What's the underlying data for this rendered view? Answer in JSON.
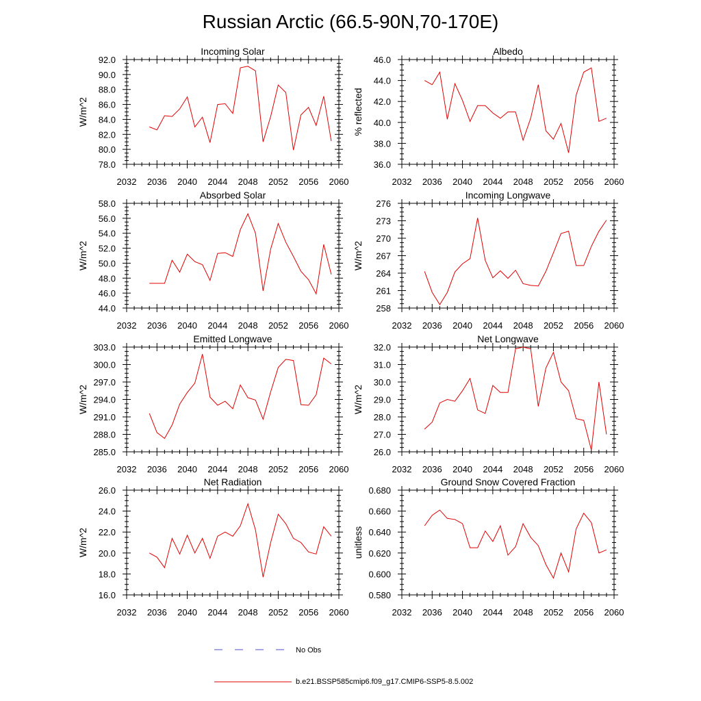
{
  "figure": {
    "title": "Russian Arctic (66.5-90N,70-170E)"
  },
  "legend": {
    "obs_label": "No Obs",
    "model_label": "b.e21.BSSP585cmip6.f09_g17.CMIP6-SSP5-8.5.002",
    "obs_color": "#4c4ccc",
    "model_color": "#e00000"
  },
  "chart_data": [
    {
      "type": "line",
      "title": "Incoming Solar",
      "ylabel": "W/m^2",
      "xlim": [
        2032,
        2060
      ],
      "ylim": [
        78,
        92
      ],
      "x_ticks": [
        2032,
        2036,
        2040,
        2044,
        2048,
        2052,
        2056,
        2060
      ],
      "x_tick_labels": [
        "2032",
        "2036",
        "2040",
        "2044",
        "2048",
        "2052",
        "2056",
        "2060"
      ],
      "y_ticks": [
        78,
        80,
        82,
        84,
        86,
        88,
        90,
        92
      ],
      "y_tick_labels": [
        "78.0",
        "80.0",
        "82.0",
        "84.0",
        "86.0",
        "88.0",
        "90.0",
        "92.0"
      ],
      "x": [
        2035,
        2036,
        2037,
        2038,
        2039,
        2040,
        2041,
        2042,
        2043,
        2044,
        2045,
        2046,
        2047,
        2048,
        2049,
        2050,
        2051,
        2052,
        2053,
        2054,
        2055,
        2056,
        2057,
        2058,
        2059
      ],
      "values": [
        83.0,
        82.6,
        84.5,
        84.4,
        85.4,
        87.0,
        83.0,
        84.3,
        80.9,
        86.0,
        86.1,
        84.8,
        90.9,
        91.1,
        90.5,
        81.0,
        84.4,
        88.6,
        87.6,
        79.9,
        84.6,
        85.6,
        83.2,
        87.1,
        81.1
      ]
    },
    {
      "type": "line",
      "title": "Albedo",
      "ylabel": "% reflected",
      "xlim": [
        2032,
        2060
      ],
      "ylim": [
        36,
        46
      ],
      "x_ticks": [
        2032,
        2036,
        2040,
        2044,
        2048,
        2052,
        2056,
        2060
      ],
      "x_tick_labels": [
        "2032",
        "2036",
        "2040",
        "2044",
        "2048",
        "2052",
        "2056",
        "2060"
      ],
      "y_ticks": [
        36,
        38,
        40,
        42,
        44,
        46
      ],
      "y_tick_labels": [
        "36.0",
        "38.0",
        "40.0",
        "42.0",
        "44.0",
        "46.0"
      ],
      "x": [
        2035,
        2036,
        2037,
        2038,
        2039,
        2040,
        2041,
        2042,
        2043,
        2044,
        2045,
        2046,
        2047,
        2048,
        2049,
        2050,
        2051,
        2052,
        2053,
        2054,
        2055,
        2056,
        2057,
        2058,
        2059
      ],
      "values": [
        44.0,
        43.6,
        44.8,
        40.3,
        43.7,
        42.1,
        40.1,
        41.6,
        41.6,
        40.9,
        40.4,
        41.0,
        41.0,
        38.3,
        40.4,
        43.6,
        39.2,
        38.4,
        39.9,
        37.1,
        42.6,
        44.8,
        45.2,
        40.1,
        40.4
      ]
    },
    {
      "type": "line",
      "title": "Absorbed Solar",
      "ylabel": "W/m^2",
      "xlim": [
        2032,
        2060
      ],
      "ylim": [
        44,
        58
      ],
      "x_ticks": [
        2032,
        2036,
        2040,
        2044,
        2048,
        2052,
        2056,
        2060
      ],
      "x_tick_labels": [
        "2032",
        "2036",
        "2040",
        "2044",
        "2048",
        "2052",
        "2056",
        "2060"
      ],
      "y_ticks": [
        44,
        46,
        48,
        50,
        52,
        54,
        56,
        58
      ],
      "y_tick_labels": [
        "44.0",
        "46.0",
        "48.0",
        "50.0",
        "52.0",
        "54.0",
        "56.0",
        "58.0"
      ],
      "x": [
        2035,
        2036,
        2037,
        2038,
        2039,
        2040,
        2041,
        2042,
        2043,
        2044,
        2045,
        2046,
        2047,
        2048,
        2049,
        2050,
        2051,
        2052,
        2053,
        2054,
        2055,
        2056,
        2057,
        2058,
        2059
      ],
      "values": [
        47.3,
        47.3,
        47.3,
        50.4,
        48.8,
        51.2,
        50.2,
        49.8,
        47.7,
        51.3,
        51.4,
        50.9,
        54.5,
        56.6,
        54.0,
        46.3,
        51.9,
        55.3,
        52.8,
        50.9,
        48.9,
        47.8,
        45.9,
        52.5,
        48.5
      ]
    },
    {
      "type": "line",
      "title": "Incoming Longwave",
      "ylabel": "W/m^2",
      "xlim": [
        2032,
        2060
      ],
      "ylim": [
        258,
        276
      ],
      "x_ticks": [
        2032,
        2036,
        2040,
        2044,
        2048,
        2052,
        2056,
        2060
      ],
      "x_tick_labels": [
        "2032",
        "2036",
        "2040",
        "2044",
        "2048",
        "2052",
        "2056",
        "2060"
      ],
      "y_ticks": [
        258,
        261,
        264,
        267,
        270,
        273,
        276
      ],
      "y_tick_labels": [
        "258",
        "261",
        "264",
        "267",
        "270",
        "273",
        "276"
      ],
      "x": [
        2035,
        2036,
        2037,
        2038,
        2039,
        2040,
        2041,
        2042,
        2043,
        2044,
        2045,
        2046,
        2047,
        2048,
        2049,
        2050,
        2051,
        2052,
        2053,
        2054,
        2055,
        2056,
        2057,
        2058,
        2059
      ],
      "values": [
        264.3,
        260.7,
        258.6,
        260.7,
        264.2,
        265.6,
        266.5,
        273.5,
        266.2,
        263.2,
        264.4,
        263.1,
        264.5,
        262.2,
        261.9,
        261.8,
        264.3,
        267.5,
        270.8,
        271.2,
        265.3,
        265.3,
        268.6,
        271.2,
        273.1
      ]
    },
    {
      "type": "line",
      "title": "Emitted Longwave",
      "ylabel": "W/m^2",
      "xlim": [
        2032,
        2060
      ],
      "ylim": [
        285,
        303
      ],
      "x_ticks": [
        2032,
        2036,
        2040,
        2044,
        2048,
        2052,
        2056,
        2060
      ],
      "x_tick_labels": [
        "2032",
        "2036",
        "2040",
        "2044",
        "2048",
        "2052",
        "2056",
        "2060"
      ],
      "y_ticks": [
        285,
        288,
        291,
        294,
        297,
        300,
        303
      ],
      "y_tick_labels": [
        "285.0",
        "288.0",
        "291.0",
        "294.0",
        "297.0",
        "300.0",
        "303.0"
      ],
      "x": [
        2035,
        2036,
        2037,
        2038,
        2039,
        2040,
        2041,
        2042,
        2043,
        2044,
        2045,
        2046,
        2047,
        2048,
        2049,
        2050,
        2051,
        2052,
        2053,
        2054,
        2055,
        2056,
        2057,
        2058,
        2059
      ],
      "values": [
        291.6,
        288.3,
        287.3,
        289.6,
        293.2,
        295.2,
        296.8,
        301.8,
        294.4,
        293.0,
        293.7,
        292.4,
        296.5,
        294.3,
        293.9,
        290.6,
        295.3,
        299.5,
        300.9,
        300.7,
        293.1,
        293.0,
        294.8,
        301.1,
        300.1
      ]
    },
    {
      "type": "line",
      "title": "Net Longwave",
      "ylabel": "W/m^2",
      "xlim": [
        2032,
        2060
      ],
      "ylim": [
        26,
        32
      ],
      "x_ticks": [
        2032,
        2036,
        2040,
        2044,
        2048,
        2052,
        2056,
        2060
      ],
      "x_tick_labels": [
        "2032",
        "2036",
        "2040",
        "2044",
        "2048",
        "2052",
        "2056",
        "2060"
      ],
      "y_ticks": [
        26,
        27,
        28,
        29,
        30,
        31,
        32
      ],
      "y_tick_labels": [
        "26.0",
        "27.0",
        "28.0",
        "29.0",
        "30.0",
        "31.0",
        "32.0"
      ],
      "x": [
        2035,
        2036,
        2037,
        2038,
        2039,
        2040,
        2041,
        2042,
        2043,
        2044,
        2045,
        2046,
        2047,
        2048,
        2049,
        2050,
        2051,
        2052,
        2053,
        2054,
        2055,
        2056,
        2057,
        2058,
        2059
      ],
      "values": [
        27.3,
        27.7,
        28.8,
        29.0,
        28.9,
        29.5,
        30.2,
        28.4,
        28.2,
        29.8,
        29.4,
        29.4,
        31.9,
        32.0,
        31.9,
        28.6,
        30.8,
        31.7,
        30.0,
        29.5,
        27.9,
        27.8,
        26.1,
        30.0,
        27.0
      ]
    },
    {
      "type": "line",
      "title": "Net Radiation",
      "ylabel": "W/m^2",
      "xlim": [
        2032,
        2060
      ],
      "ylim": [
        16,
        26
      ],
      "x_ticks": [
        2032,
        2036,
        2040,
        2044,
        2048,
        2052,
        2056,
        2060
      ],
      "x_tick_labels": [
        "2032",
        "2036",
        "2040",
        "2044",
        "2048",
        "2052",
        "2056",
        "2060"
      ],
      "y_ticks": [
        16,
        18,
        20,
        22,
        24,
        26
      ],
      "y_tick_labels": [
        "16.0",
        "18.0",
        "20.0",
        "22.0",
        "24.0",
        "26.0"
      ],
      "x": [
        2035,
        2036,
        2037,
        2038,
        2039,
        2040,
        2041,
        2042,
        2043,
        2044,
        2045,
        2046,
        2047,
        2048,
        2049,
        2050,
        2051,
        2052,
        2053,
        2054,
        2055,
        2056,
        2057,
        2058,
        2059
      ],
      "values": [
        20.0,
        19.6,
        18.6,
        21.4,
        19.9,
        21.7,
        20.0,
        21.4,
        19.5,
        21.6,
        22.0,
        21.6,
        22.6,
        24.7,
        22.2,
        17.7,
        21.0,
        23.7,
        22.8,
        21.4,
        21.0,
        20.1,
        19.9,
        22.5,
        21.6
      ]
    },
    {
      "type": "line",
      "title": "Ground Snow Covered Fraction",
      "ylabel": "unitless",
      "xlim": [
        2032,
        2060
      ],
      "ylim": [
        0.58,
        0.68
      ],
      "x_ticks": [
        2032,
        2036,
        2040,
        2044,
        2048,
        2052,
        2056,
        2060
      ],
      "x_tick_labels": [
        "2032",
        "2036",
        "2040",
        "2044",
        "2048",
        "2052",
        "2056",
        "2060"
      ],
      "y_ticks": [
        0.58,
        0.6,
        0.62,
        0.64,
        0.66,
        0.68
      ],
      "y_tick_labels": [
        "0.580",
        "0.600",
        "0.620",
        "0.640",
        "0.660",
        "0.680"
      ],
      "x": [
        2035,
        2036,
        2037,
        2038,
        2039,
        2040,
        2041,
        2042,
        2043,
        2044,
        2045,
        2046,
        2047,
        2048,
        2049,
        2050,
        2051,
        2052,
        2053,
        2054,
        2055,
        2056,
        2057,
        2058,
        2059
      ],
      "values": [
        0.646,
        0.656,
        0.661,
        0.653,
        0.652,
        0.648,
        0.625,
        0.625,
        0.641,
        0.631,
        0.646,
        0.618,
        0.626,
        0.648,
        0.635,
        0.627,
        0.609,
        0.596,
        0.62,
        0.602,
        0.643,
        0.658,
        0.649,
        0.62,
        0.623
      ]
    }
  ]
}
